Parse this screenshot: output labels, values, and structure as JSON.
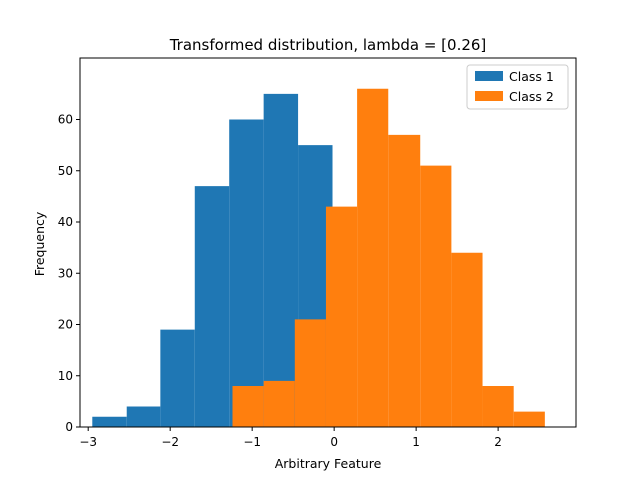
{
  "chart_data": {
    "type": "bar",
    "title": "Transformed distribution, lambda = [0.26]",
    "xlabel": "Arbitrary Feature",
    "ylabel": "Frequency",
    "xlim": [
      -3.1,
      2.95
    ],
    "ylim": [
      0,
      72
    ],
    "xticks": [
      -3,
      -2,
      -1,
      0,
      1,
      2
    ],
    "yticks": [
      0,
      10,
      20,
      30,
      40,
      50,
      60
    ],
    "grid": false,
    "legend_position": "top-right",
    "series": [
      {
        "name": "Class 1",
        "color": "#1f77b4",
        "bin_edges": [
          -2.95,
          -2.53,
          -2.12,
          -1.7,
          -1.28,
          -0.86,
          -0.44,
          -0.02
        ],
        "counts": [
          2,
          4,
          19,
          47,
          60,
          65,
          55
        ]
      },
      {
        "name": "Class 2",
        "color": "#ff7f0e",
        "bin_edges": [
          -1.24,
          -0.86,
          -0.48,
          -0.1,
          0.28,
          0.66,
          1.05,
          1.43,
          1.81,
          2.19,
          2.57
        ],
        "counts": [
          8,
          9,
          21,
          43,
          66,
          57,
          51,
          34,
          8,
          3
        ]
      }
    ]
  }
}
